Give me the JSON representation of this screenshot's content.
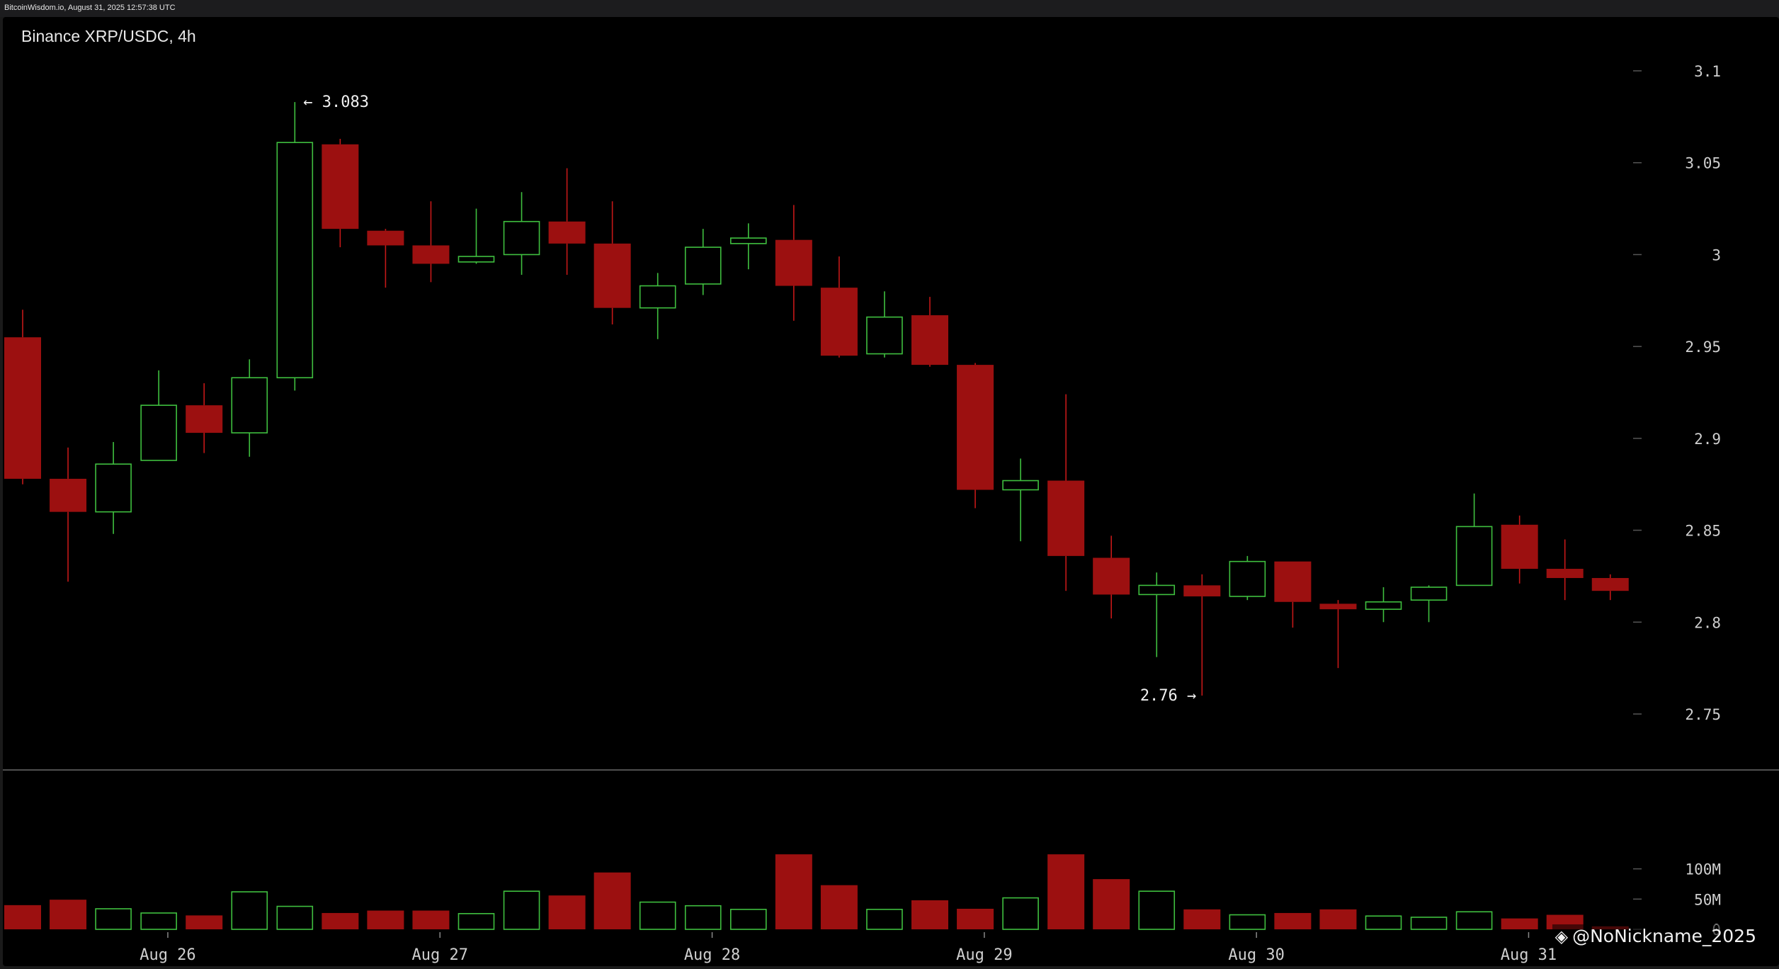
{
  "header": {
    "source_text": "BitcoinWisdom.io, August 31, 2025 12:57:38 UTC"
  },
  "watermark": {
    "icon": "diamond-logo-icon",
    "text": "@NoNickname_2025"
  },
  "colors": {
    "up": "#3fbf3f",
    "down": "#9c1010",
    "down_wick": "#c41818",
    "grid": "#555555",
    "background": "#000000"
  },
  "chart_data": {
    "type": "candlestick",
    "title": "Binance XRP/USDC, 4h",
    "price_axis": {
      "ylim": [
        2.72,
        3.13
      ],
      "ticks": [
        "3.1",
        "3.05",
        "3",
        "2.95",
        "2.9",
        "2.85",
        "2.8",
        "2.75"
      ]
    },
    "volume_axis": {
      "ylim": [
        0,
        125
      ],
      "ticks": [
        "100M",
        "50M",
        "0"
      ]
    },
    "x_labels": [
      "Aug 26",
      "Aug 27",
      "Aug 28",
      "Aug 29",
      "Aug 30",
      "Aug 31"
    ],
    "x_label_positions": [
      3.2,
      9.2,
      15.2,
      21.2,
      27.2,
      33.2
    ],
    "annotations": [
      {
        "text": "← 3.083",
        "value": 3.083,
        "index": 6
      },
      {
        "text": "2.76 →",
        "value": 2.76,
        "index": 26
      }
    ],
    "candles": [
      {
        "o": 2.955,
        "h": 2.97,
        "l": 2.875,
        "c": 2.878,
        "v": 40
      },
      {
        "o": 2.878,
        "h": 2.895,
        "l": 2.822,
        "c": 2.86,
        "v": 49
      },
      {
        "o": 2.86,
        "h": 2.898,
        "l": 2.848,
        "c": 2.886,
        "v": 34
      },
      {
        "o": 2.888,
        "h": 2.937,
        "l": 2.888,
        "c": 2.918,
        "v": 27
      },
      {
        "o": 2.918,
        "h": 2.93,
        "l": 2.892,
        "c": 2.903,
        "v": 23
      },
      {
        "o": 2.903,
        "h": 2.943,
        "l": 2.89,
        "c": 2.933,
        "v": 62
      },
      {
        "o": 2.933,
        "h": 3.083,
        "l": 2.926,
        "c": 3.061,
        "v": 38
      },
      {
        "o": 3.06,
        "h": 3.063,
        "l": 3.004,
        "c": 3.014,
        "v": 27
      },
      {
        "o": 3.013,
        "h": 3.014,
        "l": 2.982,
        "c": 3.005,
        "v": 31
      },
      {
        "o": 3.005,
        "h": 3.029,
        "l": 2.985,
        "c": 2.995,
        "v": 31
      },
      {
        "o": 2.996,
        "h": 3.025,
        "l": 2.995,
        "c": 2.999,
        "v": 26
      },
      {
        "o": 3.0,
        "h": 3.034,
        "l": 2.989,
        "c": 3.018,
        "v": 63
      },
      {
        "o": 3.018,
        "h": 3.047,
        "l": 2.989,
        "c": 3.006,
        "v": 56
      },
      {
        "o": 3.006,
        "h": 3.029,
        "l": 2.962,
        "c": 2.971,
        "v": 94
      },
      {
        "o": 2.971,
        "h": 2.99,
        "l": 2.954,
        "c": 2.983,
        "v": 45
      },
      {
        "o": 2.984,
        "h": 3.014,
        "l": 2.978,
        "c": 3.004,
        "v": 39
      },
      {
        "o": 3.006,
        "h": 3.017,
        "l": 2.992,
        "c": 3.009,
        "v": 33
      },
      {
        "o": 3.008,
        "h": 3.027,
        "l": 2.964,
        "c": 2.983,
        "v": 124
      },
      {
        "o": 2.982,
        "h": 2.999,
        "l": 2.944,
        "c": 2.945,
        "v": 73
      },
      {
        "o": 2.946,
        "h": 2.98,
        "l": 2.944,
        "c": 2.966,
        "v": 33
      },
      {
        "o": 2.967,
        "h": 2.977,
        "l": 2.939,
        "c": 2.94,
        "v": 48
      },
      {
        "o": 2.94,
        "h": 2.941,
        "l": 2.862,
        "c": 2.872,
        "v": 34
      },
      {
        "o": 2.872,
        "h": 2.889,
        "l": 2.844,
        "c": 2.877,
        "v": 52
      },
      {
        "o": 2.877,
        "h": 2.924,
        "l": 2.817,
        "c": 2.836,
        "v": 124
      },
      {
        "o": 2.835,
        "h": 2.847,
        "l": 2.802,
        "c": 2.815,
        "v": 83
      },
      {
        "o": 2.815,
        "h": 2.827,
        "l": 2.781,
        "c": 2.82,
        "v": 63
      },
      {
        "o": 2.82,
        "h": 2.826,
        "l": 2.76,
        "c": 2.814,
        "v": 33
      },
      {
        "o": 2.814,
        "h": 2.836,
        "l": 2.812,
        "c": 2.833,
        "v": 24
      },
      {
        "o": 2.833,
        "h": 2.833,
        "l": 2.797,
        "c": 2.811,
        "v": 27
      },
      {
        "o": 2.81,
        "h": 2.812,
        "l": 2.775,
        "c": 2.807,
        "v": 33
      },
      {
        "o": 2.807,
        "h": 2.819,
        "l": 2.8,
        "c": 2.811,
        "v": 22
      },
      {
        "o": 2.812,
        "h": 2.82,
        "l": 2.8,
        "c": 2.819,
        "v": 20
      },
      {
        "o": 2.82,
        "h": 2.87,
        "l": 2.82,
        "c": 2.852,
        "v": 29
      },
      {
        "o": 2.853,
        "h": 2.858,
        "l": 2.821,
        "c": 2.829,
        "v": 18
      },
      {
        "o": 2.829,
        "h": 2.845,
        "l": 2.812,
        "c": 2.824,
        "v": 24
      },
      {
        "o": 2.824,
        "h": 2.826,
        "l": 2.812,
        "c": 2.817,
        "v": 5
      }
    ]
  }
}
